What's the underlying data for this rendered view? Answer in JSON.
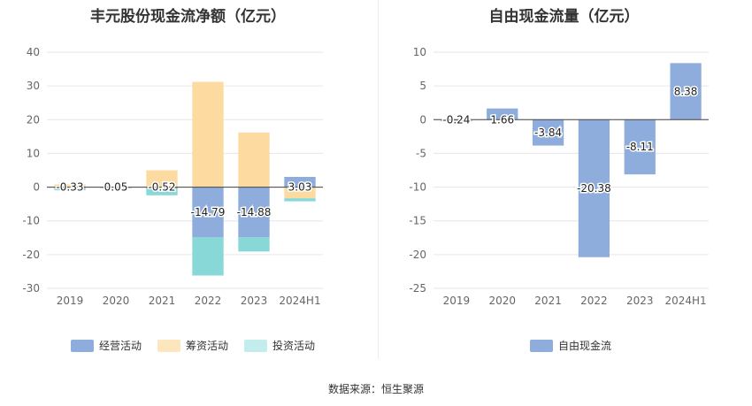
{
  "chart_data": [
    {
      "type": "bar",
      "stacked": true,
      "title": "丰元股份现金流净额（亿元）",
      "categories": [
        "2019",
        "2020",
        "2021",
        "2022",
        "2023",
        "2024H1"
      ],
      "ylim": [
        -30,
        40
      ],
      "yticks": [
        40,
        30,
        20,
        10,
        0,
        -10,
        -20,
        -30
      ],
      "grid": true,
      "legend_position": "bottom",
      "series": [
        {
          "name": "经营活动",
          "color": "#8eacdc",
          "values": [
            -0.33,
            0.05,
            -0.52,
            -14.79,
            -14.88,
            3.03
          ]
        },
        {
          "name": "筹资活动",
          "color": "#fddba0",
          "values": [
            0.8,
            0.05,
            5.0,
            31.2,
            16.2,
            -3.3
          ]
        },
        {
          "name": "投资活动",
          "color": "#88d8d8",
          "values": [
            -0.6,
            -0.3,
            -1.9,
            -11.4,
            -4.2,
            -0.9
          ]
        }
      ],
      "data_labels": [
        "-0.33",
        "0.05",
        "-0.52",
        "-14.79",
        "-14.88",
        "3.03"
      ]
    },
    {
      "type": "bar",
      "title": "自由现金流量（亿元）",
      "categories": [
        "2019",
        "2020",
        "2021",
        "2022",
        "2023",
        "2024H1"
      ],
      "ylim": [
        -25,
        10
      ],
      "yticks": [
        10,
        5,
        0,
        -5,
        -10,
        -15,
        -20,
        -25
      ],
      "grid": true,
      "legend_position": "bottom",
      "series": [
        {
          "name": "自由现金流",
          "color": "#8eacdc",
          "values": [
            -0.24,
            1.66,
            -3.84,
            -20.38,
            -8.11,
            8.38
          ]
        }
      ],
      "data_labels": [
        "-0.24",
        "1.66",
        "-3.84",
        "-20.38",
        "-8.11",
        "8.38"
      ]
    }
  ],
  "footer": {
    "source": "数据来源：恒生聚源"
  }
}
